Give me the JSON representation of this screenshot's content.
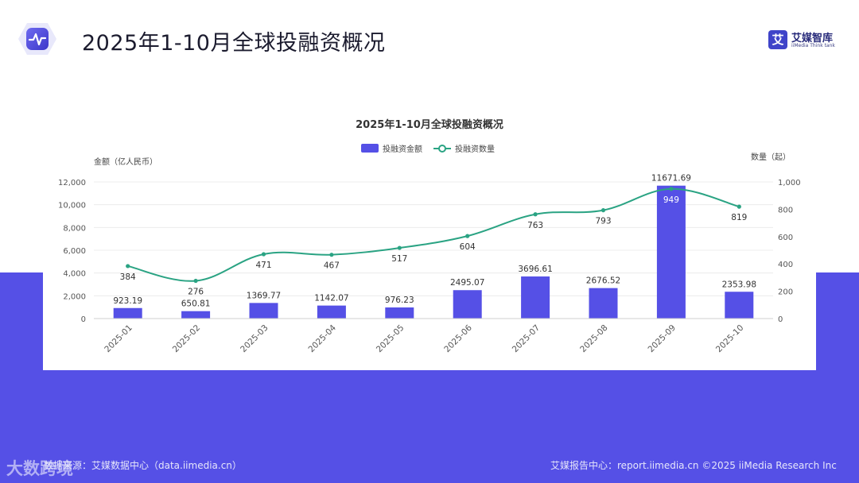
{
  "page": {
    "title": "2025年1-10月全球投融资概况"
  },
  "brand": {
    "mark": "艾",
    "name": "艾媒智库",
    "sub": "iiMedia Think tank"
  },
  "footer": {
    "left": "数据来源：艾媒数据中心（data.iimedia.cn）",
    "right": "艾媒报告中心：report.iimedia.cn  ©2025  iiMedia Research Inc",
    "watermark": "大数跨境"
  },
  "colors": {
    "bar": "#5550e6",
    "line": "#2aa383",
    "band": "#5550e6"
  },
  "chart_data": {
    "type": "bar+line",
    "title": "2025年1-10月全球投融资概况",
    "categories": [
      "2025-01",
      "2025-02",
      "2025-03",
      "2025-04",
      "2025-05",
      "2025-06",
      "2025-07",
      "2025-08",
      "2025-09",
      "2025-10"
    ],
    "series": [
      {
        "name": "投融资金额",
        "type": "bar",
        "axis": "left",
        "values": [
          923.19,
          650.81,
          1369.77,
          1142.07,
          976.23,
          2495.07,
          3696.61,
          2676.52,
          11671.69,
          2353.98
        ],
        "labels": [
          "923.19",
          "650.81",
          "1369.77",
          "1142.07",
          "976.23",
          "2495.07",
          "3696.61",
          "2676.52",
          "11671.69",
          "2353.98"
        ]
      },
      {
        "name": "投融资数量",
        "type": "line",
        "axis": "right",
        "values": [
          384,
          276,
          471,
          467,
          517,
          604,
          763,
          793,
          949,
          819
        ],
        "labels": [
          "384",
          "276",
          "471",
          "467",
          "517",
          "604",
          "763",
          "793",
          "949",
          "819"
        ]
      }
    ],
    "y_left": {
      "label": "金额（亿人民币）",
      "range": [
        0,
        12000
      ],
      "ticks": [
        0,
        2000,
        4000,
        6000,
        8000,
        10000,
        12000
      ],
      "tick_labels": [
        "0",
        "2,000",
        "4,000",
        "6,000",
        "8,000",
        "10,000",
        "12,000"
      ]
    },
    "y_right": {
      "label": "数量（起）",
      "range": [
        0,
        1000
      ],
      "ticks": [
        0,
        200,
        400,
        600,
        800,
        1000
      ],
      "tick_labels": [
        "0",
        "200",
        "400",
        "600",
        "800",
        "1,000"
      ]
    },
    "legend_position": "top-center",
    "grid": true
  }
}
